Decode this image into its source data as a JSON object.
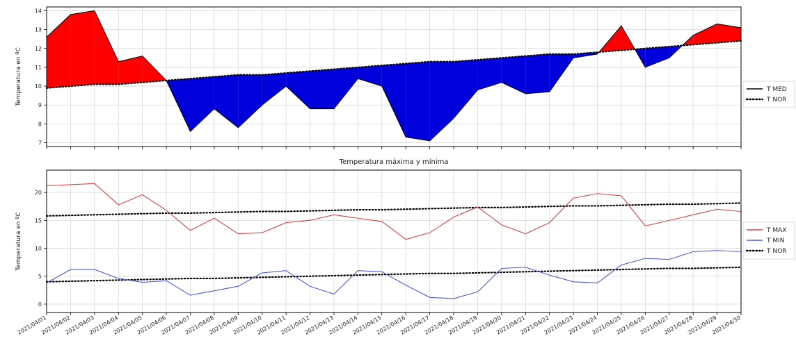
{
  "chart_data": [
    {
      "type": "area",
      "title": "",
      "xlabel": "",
      "ylabel": "Temperatura en ºC",
      "ylim": [
        6.8,
        14.2
      ],
      "yticks": [
        7,
        8,
        9,
        10,
        11,
        12,
        13,
        14
      ],
      "grid": true,
      "legend_position": "right",
      "fill_above_color": "#ff0000",
      "fill_below_color": "#0000dd",
      "series": [
        {
          "name": "T MED",
          "style": "solid",
          "color": "#000000",
          "values": [
            12.6,
            13.8,
            14.0,
            11.3,
            11.6,
            10.3,
            7.6,
            8.8,
            7.8,
            9.0,
            10.0,
            8.8,
            8.8,
            10.4,
            10.0,
            7.3,
            7.1,
            8.3,
            9.8,
            10.2,
            9.6,
            9.7,
            11.5,
            11.7,
            13.2,
            11.0,
            11.5,
            12.7,
            13.3,
            13.1
          ]
        },
        {
          "name": "T NOR",
          "style": "dotted",
          "color": "#000000",
          "values": [
            9.9,
            10.0,
            10.1,
            10.1,
            10.2,
            10.3,
            10.4,
            10.5,
            10.6,
            10.6,
            10.7,
            10.8,
            10.9,
            11.0,
            11.1,
            11.2,
            11.3,
            11.3,
            11.4,
            11.5,
            11.6,
            11.7,
            11.7,
            11.8,
            11.9,
            12.0,
            12.1,
            12.2,
            12.3,
            12.4
          ]
        }
      ]
    },
    {
      "type": "line",
      "title": "Temperatura máxima y mínima",
      "xlabel": "",
      "ylabel": "Temperatura en ºC",
      "ylim": [
        -1.5,
        24
      ],
      "yticks": [
        0,
        5,
        10,
        15,
        20
      ],
      "grid": true,
      "legend_position": "right",
      "categories": [
        "2021/04/01",
        "2021/04/02",
        "2021/04/03",
        "2021/04/04",
        "2021/04/05",
        "2021/04/06",
        "2021/04/07",
        "2021/04/08",
        "2021/04/09",
        "2021/04/10",
        "2021/04/11",
        "2021/04/12",
        "2021/04/13",
        "2021/04/14",
        "2021/04/15",
        "2021/04/16",
        "2021/04/17",
        "2021/04/18",
        "2021/04/19",
        "2021/04/20",
        "2021/04/21",
        "2021/04/22",
        "2021/04/23",
        "2021/04/24",
        "2021/04/25",
        "2021/04/26",
        "2021/04/27",
        "2021/04/28",
        "2021/04/29",
        "2021/04/30"
      ],
      "series": [
        {
          "name": "T MAX",
          "style": "solid",
          "color": "#d64545",
          "values": [
            21.2,
            21.4,
            21.6,
            17.8,
            19.6,
            16.8,
            13.2,
            15.4,
            12.6,
            12.8,
            14.6,
            15.0,
            16.0,
            15.4,
            14.8,
            11.6,
            12.8,
            15.6,
            17.4,
            14.2,
            12.6,
            14.6,
            19.0,
            19.8,
            19.4,
            14.0,
            15.0,
            16.0,
            17.0,
            16.6
          ]
        },
        {
          "name": "T MIN",
          "style": "solid",
          "color": "#4a5ad8",
          "values": [
            3.8,
            6.2,
            6.2,
            4.6,
            3.9,
            4.2,
            1.6,
            2.4,
            3.2,
            5.6,
            6.0,
            3.2,
            1.8,
            6.0,
            5.8,
            3.4,
            1.2,
            1.0,
            2.2,
            6.4,
            6.6,
            5.2,
            4.0,
            3.8,
            7.0,
            8.2,
            8.0,
            9.4,
            9.6,
            9.4
          ]
        },
        {
          "name": "T NOR",
          "style": "dotted",
          "color": "#000000",
          "values_max": [
            15.8,
            15.9,
            16.0,
            16.1,
            16.2,
            16.3,
            16.3,
            16.4,
            16.5,
            16.6,
            16.6,
            16.7,
            16.8,
            16.9,
            16.9,
            17.0,
            17.1,
            17.2,
            17.3,
            17.3,
            17.4,
            17.5,
            17.6,
            17.6,
            17.7,
            17.8,
            17.9,
            17.9,
            18.0,
            18.1
          ],
          "values_min": [
            4.0,
            4.1,
            4.2,
            4.3,
            4.4,
            4.5,
            4.6,
            4.6,
            4.7,
            4.8,
            4.9,
            5.0,
            5.1,
            5.2,
            5.3,
            5.4,
            5.5,
            5.5,
            5.6,
            5.7,
            5.8,
            5.9,
            6.0,
            6.1,
            6.2,
            6.3,
            6.4,
            6.4,
            6.5,
            6.6
          ]
        }
      ]
    }
  ]
}
